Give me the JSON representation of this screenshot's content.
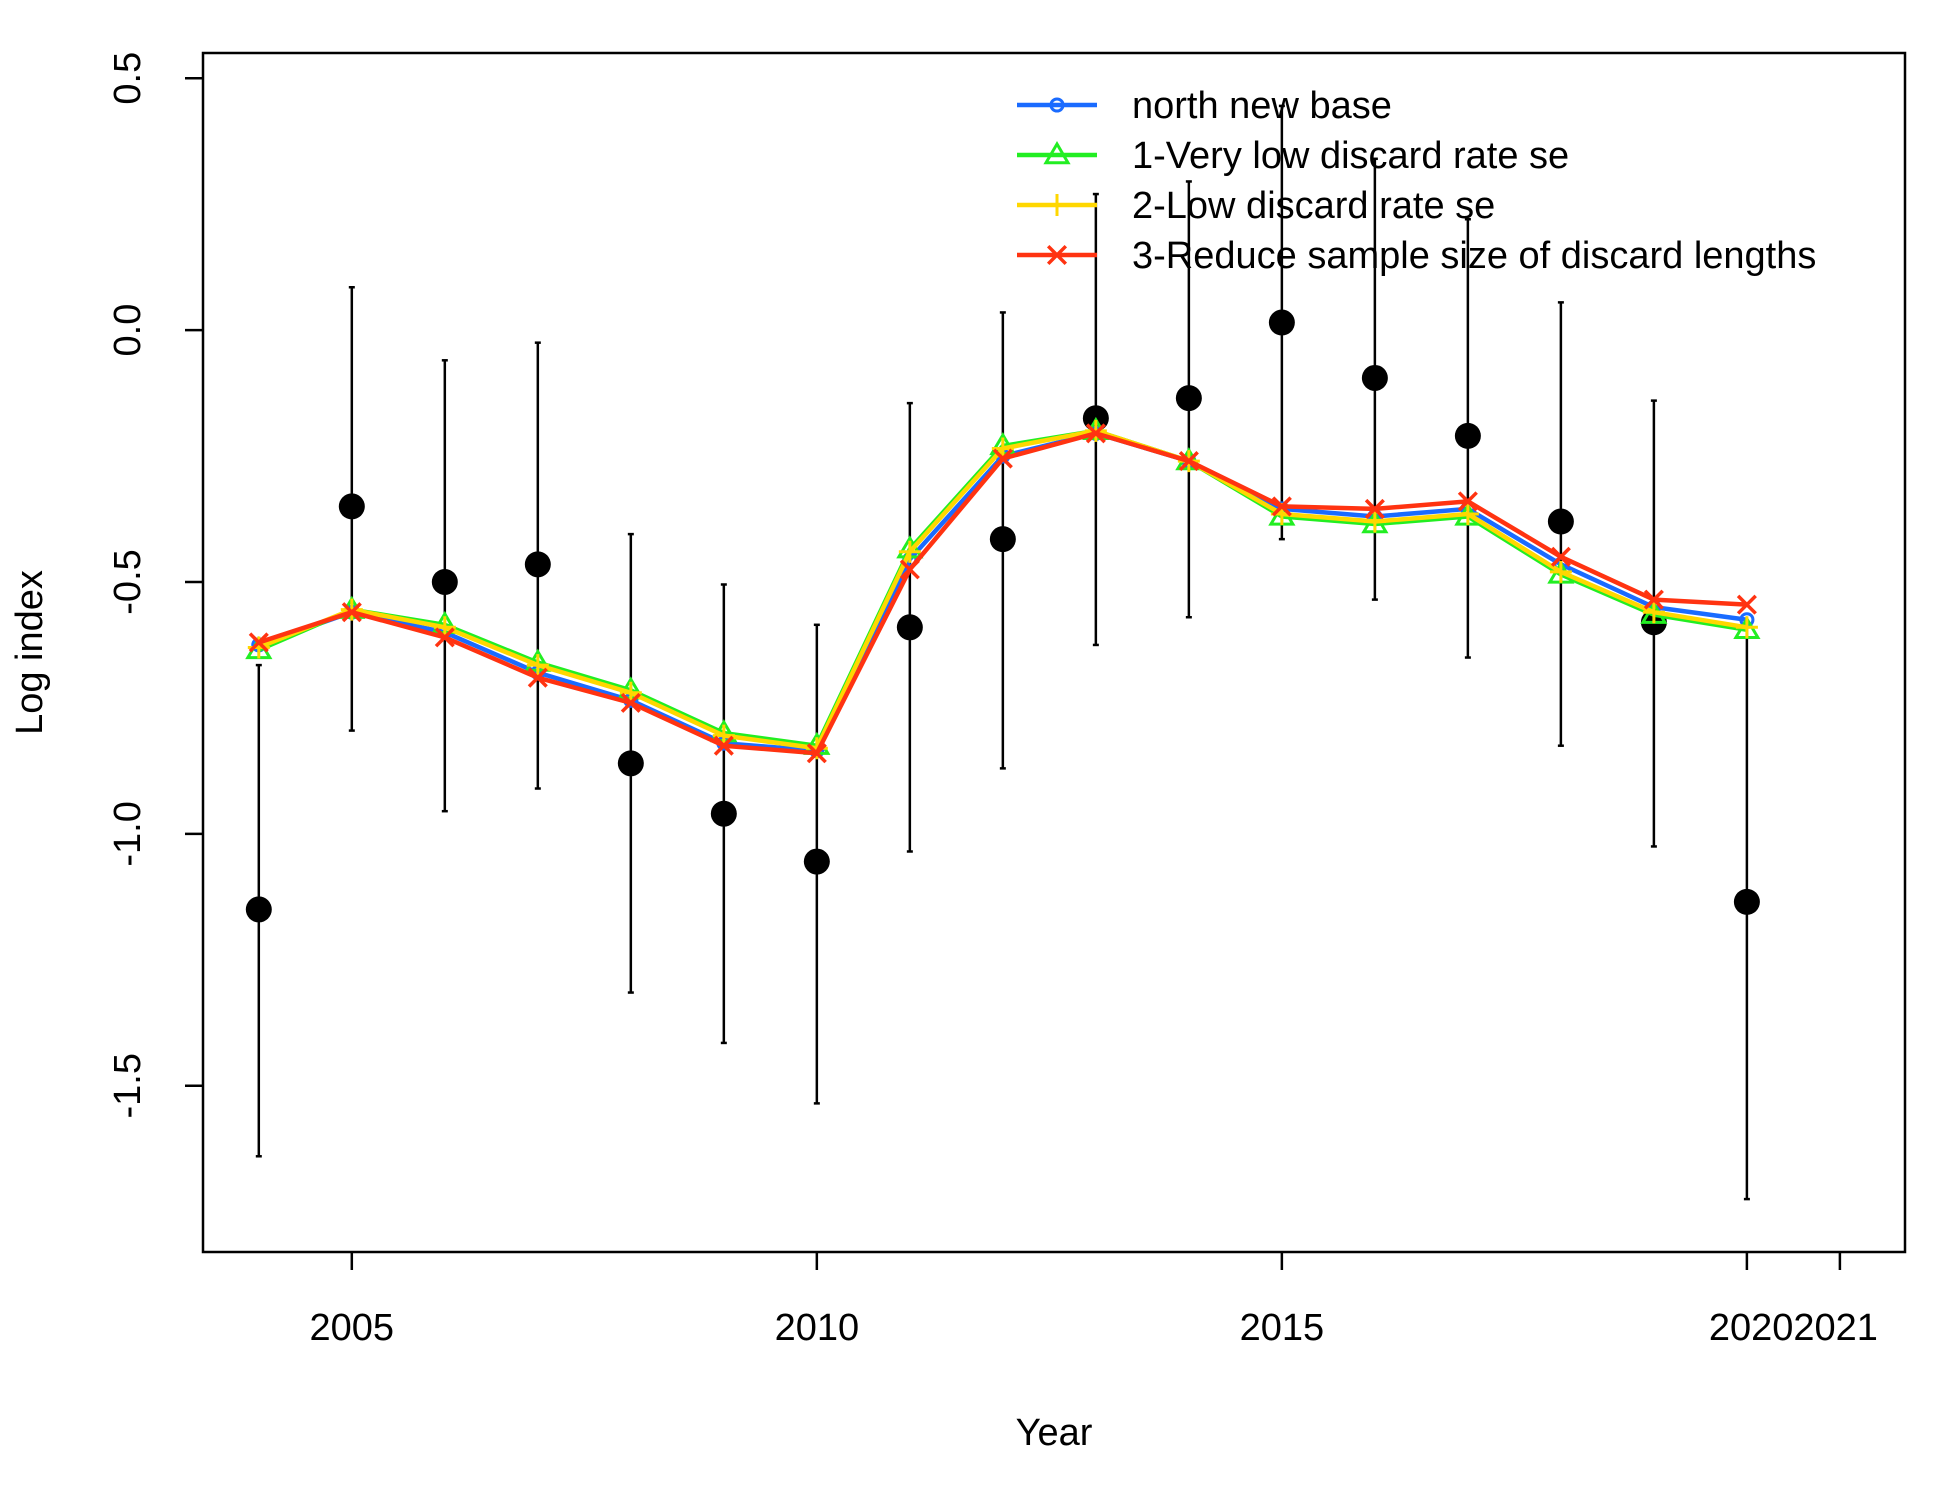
{
  "chart_data": {
    "type": "line",
    "title": "",
    "xlabel": "Year",
    "ylabel": "Log index",
    "xlim": [
      2003.4,
      2021.7
    ],
    "ylim": [
      -1.83,
      0.55
    ],
    "x_ticks": [
      2005,
      2010,
      2015,
      2020,
      2021
    ],
    "x_tick_labels": [
      "2005",
      "2010",
      "2015",
      "2020",
      "2021"
    ],
    "y_ticks": [
      -1.5,
      -1.0,
      -0.5,
      0.0,
      0.5
    ],
    "y_tick_labels": [
      "-1.5",
      "-1.0",
      "-0.5",
      "0.0",
      "0.5"
    ],
    "grid": false,
    "legend_position": "top-right",
    "observed": {
      "x": [
        2004,
        2005,
        2006,
        2007,
        2008,
        2009,
        2010,
        2011,
        2012,
        2013,
        2014,
        2015,
        2016,
        2017,
        2018,
        2019,
        2020
      ],
      "y": [
        -1.15,
        -0.35,
        -0.5,
        -0.465,
        -0.86,
        -0.96,
        -1.055,
        -0.59,
        -0.415,
        -0.175,
        -0.135,
        0.015,
        -0.095,
        -0.21,
        -0.38,
        -0.58,
        -1.135
      ],
      "lower": [
        -1.64,
        -0.795,
        -0.955,
        -0.91,
        -1.315,
        -1.415,
        -1.535,
        -1.035,
        -0.87,
        -0.625,
        -0.57,
        -0.415,
        -0.535,
        -0.65,
        -0.825,
        -1.025,
        -1.725
      ],
      "upper": [
        -0.665,
        0.085,
        -0.06,
        -0.025,
        -0.405,
        -0.505,
        -0.585,
        -0.145,
        0.035,
        0.27,
        0.295,
        0.445,
        0.34,
        0.22,
        0.055,
        -0.14,
        -0.59
      ],
      "color": "#000000"
    },
    "series": [
      {
        "name": "north new base",
        "color": "#1a6bff",
        "marker": "circle",
        "x": [
          2004,
          2005,
          2006,
          2007,
          2008,
          2009,
          2010,
          2011,
          2012,
          2013,
          2014,
          2015,
          2016,
          2017,
          2018,
          2019,
          2020
        ],
        "y": [
          -0.625,
          -0.56,
          -0.6,
          -0.68,
          -0.735,
          -0.82,
          -0.835,
          -0.455,
          -0.25,
          -0.205,
          -0.26,
          -0.355,
          -0.37,
          -0.355,
          -0.465,
          -0.55,
          -0.575
        ]
      },
      {
        "name": "1-Very low discard rate se",
        "color": "#22ee22",
        "marker": "triangle",
        "x": [
          2004,
          2005,
          2006,
          2007,
          2008,
          2009,
          2010,
          2011,
          2012,
          2013,
          2014,
          2015,
          2016,
          2017,
          2018,
          2019,
          2020
        ],
        "y": [
          -0.635,
          -0.555,
          -0.585,
          -0.66,
          -0.715,
          -0.8,
          -0.825,
          -0.435,
          -0.23,
          -0.2,
          -0.26,
          -0.37,
          -0.385,
          -0.37,
          -0.485,
          -0.565,
          -0.595
        ]
      },
      {
        "name": "2-Low discard rate se",
        "color": "#ffd700",
        "marker": "plus",
        "x": [
          2004,
          2005,
          2006,
          2007,
          2008,
          2009,
          2010,
          2011,
          2012,
          2013,
          2014,
          2015,
          2016,
          2017,
          2018,
          2019,
          2020
        ],
        "y": [
          -0.63,
          -0.555,
          -0.59,
          -0.665,
          -0.72,
          -0.805,
          -0.83,
          -0.44,
          -0.235,
          -0.2,
          -0.26,
          -0.365,
          -0.38,
          -0.365,
          -0.48,
          -0.56,
          -0.59
        ]
      },
      {
        "name": "3-Reduce sample size of discard lengths",
        "color": "#ff3311",
        "marker": "x",
        "x": [
          2004,
          2005,
          2006,
          2007,
          2008,
          2009,
          2010,
          2011,
          2012,
          2013,
          2014,
          2015,
          2016,
          2017,
          2018,
          2019,
          2020
        ],
        "y": [
          -0.62,
          -0.56,
          -0.61,
          -0.69,
          -0.74,
          -0.825,
          -0.84,
          -0.475,
          -0.255,
          -0.205,
          -0.26,
          -0.35,
          -0.355,
          -0.34,
          -0.45,
          -0.535,
          -0.545
        ]
      }
    ]
  }
}
